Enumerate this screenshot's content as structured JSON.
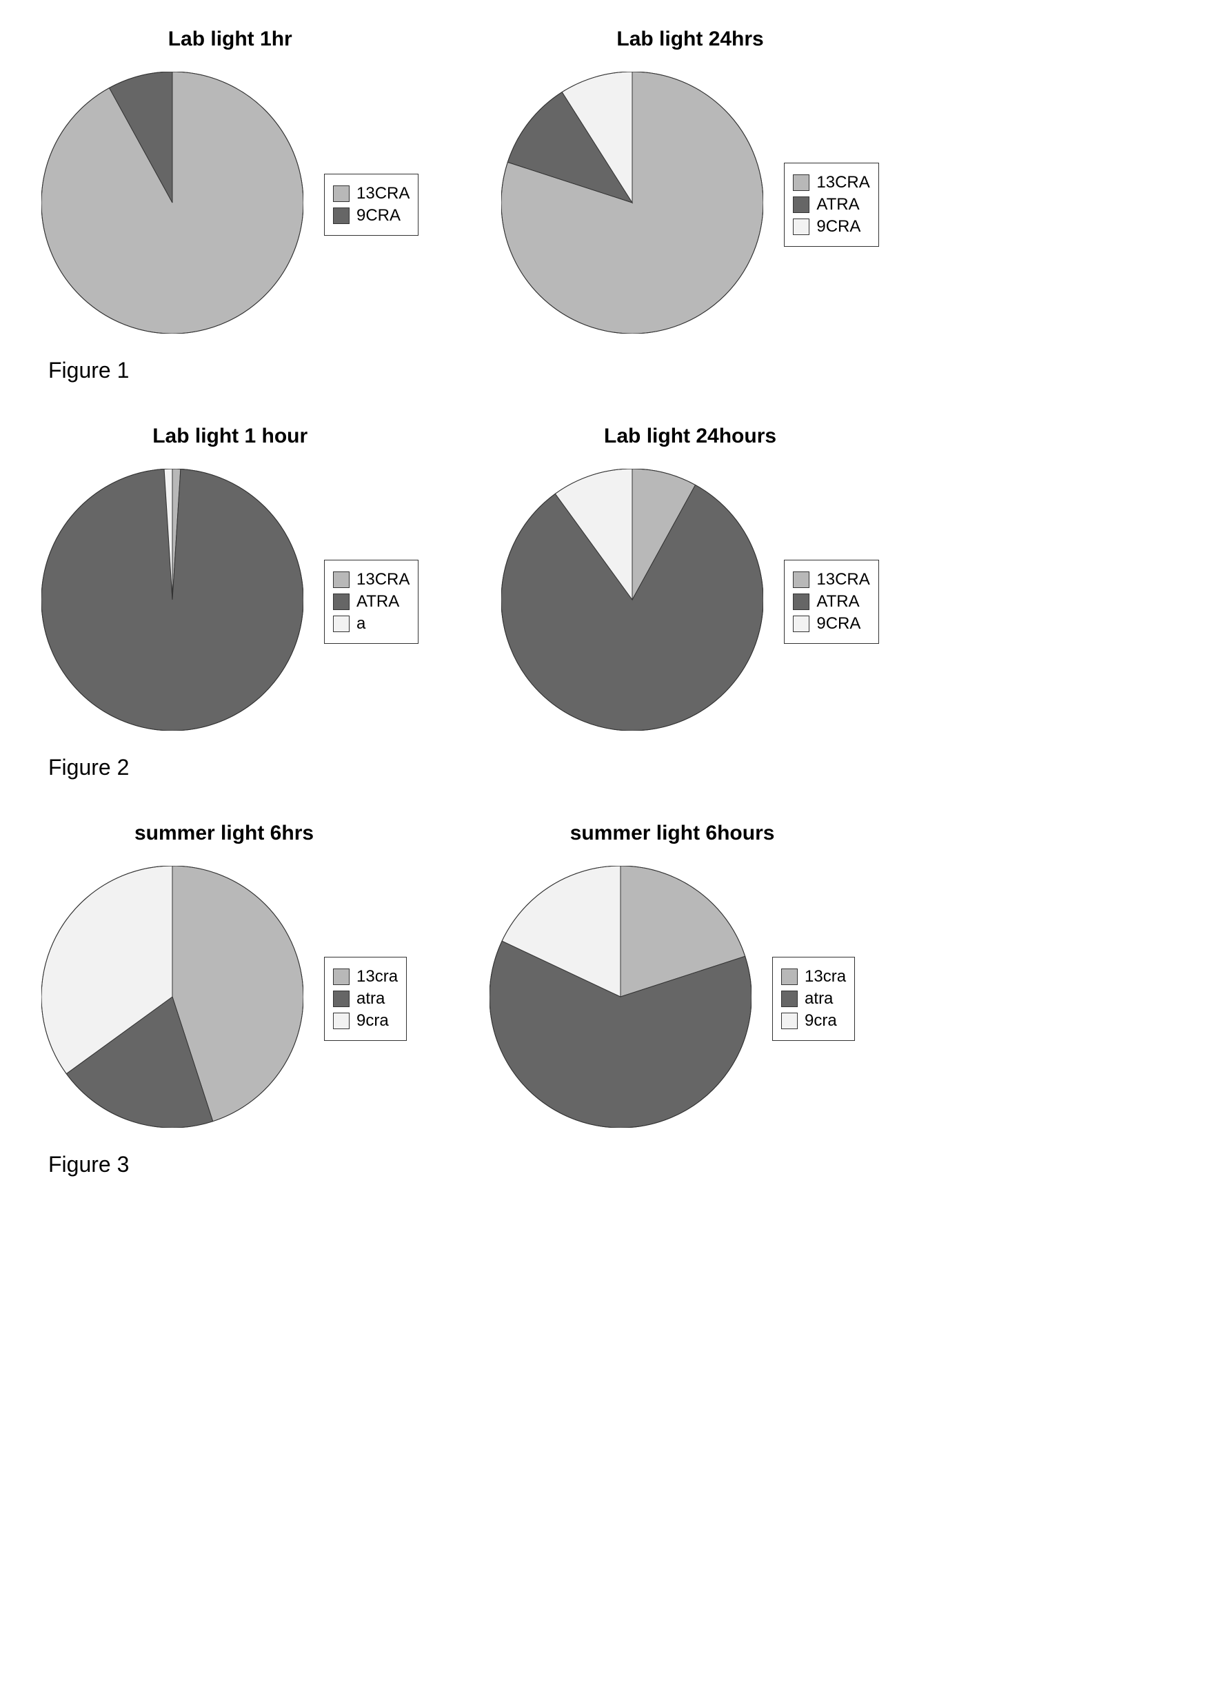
{
  "colors": {
    "light_gray": "#b8b8b8",
    "dark_gray": "#666666",
    "white_textured": "#f2f2f2",
    "stroke": "#333333",
    "bg": "#ffffff"
  },
  "pie_diameter": 380,
  "title_fontsize": 30,
  "legend_fontsize": 24,
  "caption_fontsize": 32,
  "figures": [
    {
      "caption": "Figure 1",
      "charts": [
        {
          "title": "Lab light 1hr",
          "slices": [
            {
              "label": "13CRA",
              "value": 92,
              "color": "#b8b8b8"
            },
            {
              "label": "9CRA",
              "value": 8,
              "color": "#666666"
            }
          ],
          "start_angle": -90
        },
        {
          "title": "Lab light 24hrs",
          "slices": [
            {
              "label": "13CRA",
              "value": 80,
              "color": "#b8b8b8"
            },
            {
              "label": "ATRA",
              "value": 11,
              "color": "#666666"
            },
            {
              "label": "9CRA",
              "value": 9,
              "color": "#f2f2f2"
            }
          ],
          "start_angle": -90
        }
      ]
    },
    {
      "caption": "Figure 2",
      "charts": [
        {
          "title": "Lab light 1 hour",
          "slices": [
            {
              "label": "13CRA",
              "value": 1,
              "color": "#b8b8b8"
            },
            {
              "label": "ATRA",
              "value": 98,
              "color": "#666666"
            },
            {
              "label": "a",
              "value": 1,
              "color": "#f2f2f2"
            }
          ],
          "start_angle": -90
        },
        {
          "title": "Lab light 24hours",
          "slices": [
            {
              "label": "13CRA",
              "value": 8,
              "color": "#b8b8b8"
            },
            {
              "label": "ATRA",
              "value": 82,
              "color": "#666666"
            },
            {
              "label": "9CRA",
              "value": 10,
              "color": "#f2f2f2"
            }
          ],
          "start_angle": -90
        }
      ]
    },
    {
      "caption": "Figure 3",
      "charts": [
        {
          "title": "summer light 6hrs",
          "slices": [
            {
              "label": "13cra",
              "value": 45,
              "color": "#b8b8b8"
            },
            {
              "label": "atra",
              "value": 20,
              "color": "#666666"
            },
            {
              "label": "9cra",
              "value": 35,
              "color": "#f2f2f2"
            }
          ],
          "start_angle": -90
        },
        {
          "title": "summer light 6hours",
          "slices": [
            {
              "label": "13cra",
              "value": 20,
              "color": "#b8b8b8"
            },
            {
              "label": "atra",
              "value": 62,
              "color": "#666666"
            },
            {
              "label": "9cra",
              "value": 18,
              "color": "#f2f2f2"
            }
          ],
          "start_angle": -90
        }
      ]
    }
  ]
}
